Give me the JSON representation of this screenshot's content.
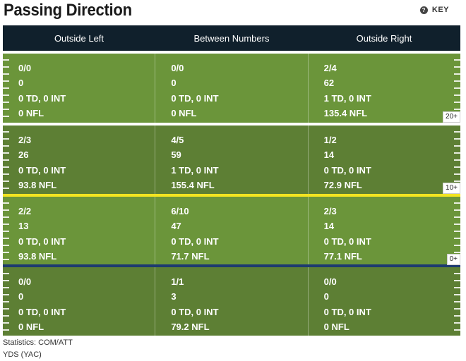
{
  "title": "Passing Direction",
  "key_label": "KEY",
  "key_icon": "help-icon",
  "columns": [
    "Outside Left",
    "Between Numbers",
    "Outside Right"
  ],
  "yard_markers": [
    "20+",
    "10+",
    "0+"
  ],
  "zones": [
    {
      "cells": [
        [
          "0/0",
          "0",
          "0 TD, 0 INT",
          "0 NFL"
        ],
        [
          "0/0",
          "0",
          "0 TD, 0 INT",
          "0 NFL"
        ],
        [
          "2/4",
          "62",
          "1 TD, 0 INT",
          "135.4 NFL"
        ]
      ]
    },
    {
      "cells": [
        [
          "2/3",
          "26",
          "0 TD, 0 INT",
          "93.8 NFL"
        ],
        [
          "4/5",
          "59",
          "1 TD, 0 INT",
          "155.4 NFL"
        ],
        [
          "1/2",
          "14",
          "0 TD, 0 INT",
          "72.9 NFL"
        ]
      ]
    },
    {
      "cells": [
        [
          "2/2",
          "13",
          "0 TD, 0 INT",
          "93.8 NFL"
        ],
        [
          "6/10",
          "47",
          "0 TD, 0 INT",
          "71.7 NFL"
        ],
        [
          "2/3",
          "14",
          "0 TD, 0 INT",
          "77.1 NFL"
        ]
      ]
    },
    {
      "cells": [
        [
          "0/0",
          "0",
          "0 TD, 0 INT",
          "0 NFL"
        ],
        [
          "1/1",
          "3",
          "0 TD, 0 INT",
          "79.2 NFL"
        ],
        [
          "0/0",
          "0",
          "0 TD, 0 INT",
          "0 NFL"
        ]
      ]
    }
  ],
  "footer": [
    "Statistics: COM/ATT",
    "YDS (YAC)"
  ],
  "colors": {
    "header_bg": "#10202c",
    "field_light": "#6b953a",
    "field_dark": "#5d7f34",
    "line_of_scrimmage": "#1d3a70",
    "first_down_line": "#f2e421"
  }
}
